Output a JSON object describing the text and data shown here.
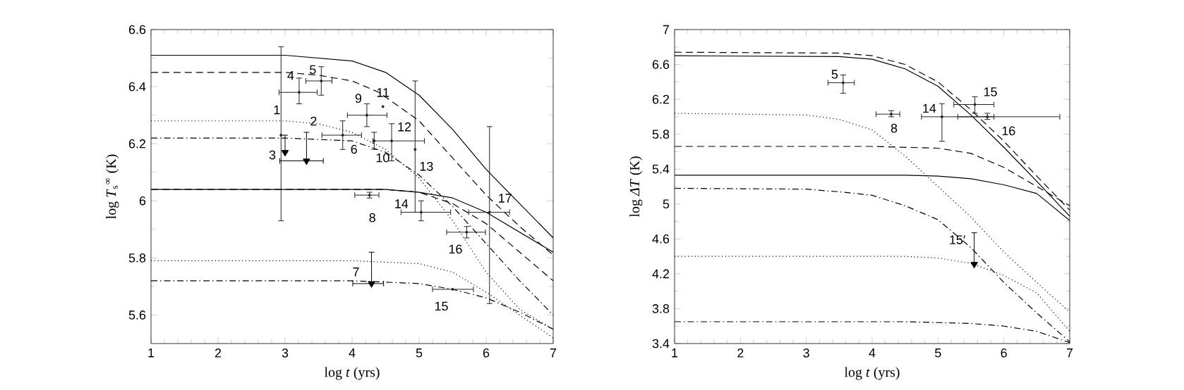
{
  "chart_data": [
    {
      "type": "line",
      "xlabel": "log *t* (yrs)",
      "ylabel": "log *T*$_{s}$$^{∞}$ (K)",
      "xlim": [
        1,
        7
      ],
      "ylim": [
        5.5,
        6.6
      ],
      "xticks": [
        1,
        2,
        3,
        4,
        5,
        6,
        7
      ],
      "yticks": [
        5.6,
        5.8,
        6,
        6.2,
        6.4,
        6.6
      ],
      "series": [
        {
          "line_style": "solid",
          "color": "#000000",
          "x": [
            1,
            3,
            4,
            4.5,
            5,
            5.5,
            6,
            6.5,
            7
          ],
          "values": [
            6.51,
            6.51,
            6.49,
            6.45,
            6.37,
            6.25,
            6.11,
            5.99,
            5.87
          ]
        },
        {
          "line_style": "dashed",
          "color": "#000000",
          "x": [
            1,
            3,
            3.5,
            4,
            4.4,
            5,
            5.5,
            6,
            6.5,
            7
          ],
          "values": [
            6.45,
            6.45,
            6.44,
            6.42,
            6.38,
            6.28,
            6.15,
            6.02,
            5.91,
            5.81
          ]
        },
        {
          "line_style": "solid",
          "color": "#000000",
          "x": [
            1,
            4,
            4.5,
            5,
            5.5,
            6,
            6.5,
            7
          ],
          "values": [
            6.04,
            6.04,
            6.04,
            6.03,
            6.01,
            5.96,
            5.89,
            5.82
          ]
        },
        {
          "line_style": "dashed",
          "color": "#000000",
          "x": [
            1,
            4,
            4.5,
            5,
            5.5,
            6,
            6.5,
            7
          ],
          "values": [
            6.04,
            6.04,
            6.04,
            6.03,
            5.99,
            5.92,
            5.82,
            5.72
          ]
        },
        {
          "line_style": "dashdot",
          "color": "#000000",
          "x": [
            1,
            3,
            4,
            4.5,
            5,
            5.5,
            6,
            6.5,
            7
          ],
          "values": [
            6.22,
            6.22,
            6.21,
            6.17,
            6.09,
            5.98,
            5.85,
            5.72,
            5.6
          ]
        },
        {
          "line_style": "dotted",
          "color": "#000000",
          "x": [
            1,
            3,
            3.5,
            4,
            4.5,
            5,
            5.5,
            6,
            6.5,
            7
          ],
          "values": [
            6.28,
            6.28,
            6.27,
            6.24,
            6.18,
            6.08,
            5.93,
            5.75,
            5.62,
            5.55
          ]
        },
        {
          "line_style": "dotted",
          "color": "#000000",
          "x": [
            1,
            4,
            5,
            5.5,
            6,
            6.5,
            7
          ],
          "values": [
            5.79,
            5.79,
            5.78,
            5.75,
            5.68,
            5.6,
            5.52
          ]
        },
        {
          "line_style": "dashdot",
          "color": "#000000",
          "x": [
            1,
            4,
            5,
            5.5,
            6,
            6.5,
            7
          ],
          "values": [
            5.72,
            5.72,
            5.71,
            5.69,
            5.66,
            5.61,
            5.55
          ]
        },
        {
          "type": "scatter",
          "marker": "circle",
          "color": "#222222",
          "x": [
            2.94,
            3.21,
            3.54,
            3.86,
            4.26,
            4.22,
            4.33,
            4.46,
            4.59,
            4.94,
            5.03,
            5.5,
            5.71,
            6.05
          ],
          "values": [
            6.23,
            6.38,
            6.42,
            6.23,
            6.02,
            6.3,
            6.21,
            6.33,
            6.21,
            6.18,
            5.96,
            5.69,
            5.89,
            5.96
          ],
          "errors": [
            [
              5.93,
              6.54
            ],
            [
              6.34,
              6.43
            ],
            [
              6.37,
              6.47
            ],
            [
              6.18,
              6.28
            ],
            [
              6.01,
              6.03
            ],
            [
              6.26,
              6.34
            ],
            [
              6.18,
              6.24
            ],
            null,
            [
              6.14,
              6.27
            ],
            [
              5.96,
              6.42
            ],
            [
              5.93,
              6.0
            ],
            null,
            [
              5.87,
              5.91
            ],
            [
              5.64,
              6.26
            ]
          ],
          "xerrors": [
            null,
            [
              2.91,
              3.48
            ],
            [
              3.31,
              3.7
            ],
            [
              3.55,
              4.14
            ],
            [
              4.04,
              4.4
            ],
            [
              3.93,
              4.52
            ],
            null,
            null,
            [
              4.31,
              5.08
            ],
            null,
            [
              4.73,
              5.47
            ],
            [
              5.2,
              5.81
            ],
            [
              5.41,
              5.99
            ],
            [
              5.74,
              6.35
            ]
          ]
        },
        {
          "type": "scatter",
          "marker": "triangle",
          "color": "#000000",
          "x": [
            3.0,
            3.32,
            4.29
          ],
          "values": [
            6.17,
            6.14,
            5.71
          ],
          "errors": [
            [
              6.17,
              6.23
            ],
            [
              6.14,
              6.24
            ],
            [
              5.71,
              5.82
            ]
          ],
          "xerrors": [
            null,
            [
              2.92,
              3.57
            ],
            [
              4.01,
              4.47
            ]
          ]
        }
      ],
      "annotations": [
        {
          "text": "1",
          "x": 2.94,
          "y": 6.23
        },
        {
          "text": "2",
          "x": 3.32,
          "y": 6.24
        },
        {
          "text": "3",
          "x": 3.0,
          "y": 6.23
        },
        {
          "text": "4",
          "x": 3.21,
          "y": 6.38
        },
        {
          "text": "5",
          "x": 3.54,
          "y": 6.42
        },
        {
          "text": "6",
          "x": 3.86,
          "y": 6.23
        },
        {
          "text": "7",
          "x": 4.29,
          "y": 5.82
        },
        {
          "text": "8",
          "x": 4.26,
          "y": 6.02
        },
        {
          "text": "9",
          "x": 4.22,
          "y": 6.3
        },
        {
          "text": "10",
          "x": 4.33,
          "y": 6.21
        },
        {
          "text": "11",
          "x": 4.46,
          "y": 6.33
        },
        {
          "text": "12",
          "x": 4.59,
          "y": 6.21
        },
        {
          "text": "13",
          "x": 4.94,
          "y": 6.18
        },
        {
          "text": "14",
          "x": 5.03,
          "y": 5.96
        },
        {
          "text": "15",
          "x": 5.5,
          "y": 5.69
        },
        {
          "text": "16",
          "x": 5.71,
          "y": 5.89
        },
        {
          "text": "17",
          "x": 6.05,
          "y": 5.96
        }
      ]
    },
    {
      "type": "line",
      "xlabel": "log *t* (yrs)",
      "ylabel": "log *ΔT* (K)",
      "xlim": [
        1,
        7
      ],
      "ylim": [
        3.4,
        7
      ],
      "xticks": [
        1,
        2,
        3,
        4,
        5,
        6,
        7
      ],
      "yticks": [
        3.4,
        3.8,
        4.2,
        4.6,
        5,
        5.4,
        5.8,
        6.2,
        6.6,
        7
      ],
      "series": [
        {
          "line_style": "dashed",
          "color": "#000000",
          "x": [
            1,
            3.5,
            4,
            4.5,
            5,
            5.5,
            6,
            6.5,
            7
          ],
          "values": [
            6.74,
            6.73,
            6.7,
            6.6,
            6.4,
            6.08,
            5.72,
            5.32,
            4.93
          ]
        },
        {
          "line_style": "solid",
          "color": "#000000",
          "x": [
            1,
            3.5,
            4,
            4.5,
            5,
            5.5,
            6,
            6.5,
            7
          ],
          "values": [
            6.7,
            6.69,
            6.66,
            6.55,
            6.35,
            6.02,
            5.65,
            5.26,
            4.86
          ]
        },
        {
          "line_style": "dashed",
          "color": "#000000",
          "x": [
            1,
            4,
            5,
            5.5,
            6,
            6.5,
            7
          ],
          "values": [
            5.66,
            5.66,
            5.64,
            5.58,
            5.42,
            5.2,
            4.98
          ]
        },
        {
          "line_style": "solid",
          "color": "#000000",
          "x": [
            1,
            4.5,
            5,
            5.5,
            6,
            6.5,
            7
          ],
          "values": [
            5.33,
            5.33,
            5.32,
            5.29,
            5.22,
            5.12,
            4.81
          ]
        },
        {
          "line_style": "dotted",
          "color": "#000000",
          "x": [
            1,
            3,
            3.5,
            4,
            4.5,
            5,
            5.5,
            6,
            6.5,
            7
          ],
          "values": [
            6.04,
            6.02,
            5.97,
            5.85,
            5.55,
            5.2,
            4.85,
            4.45,
            4.1,
            3.76
          ]
        },
        {
          "line_style": "dotted",
          "color": "#000000",
          "x": [
            1,
            4.5,
            5,
            5.5,
            6,
            6.5,
            7
          ],
          "values": [
            4.4,
            4.4,
            4.38,
            4.32,
            4.18,
            3.98,
            3.54
          ]
        },
        {
          "line_style": "dashdot",
          "color": "#000000",
          "x": [
            1,
            3,
            3.5,
            4,
            4.5,
            5,
            5.5,
            6,
            6.5,
            7
          ],
          "values": [
            5.18,
            5.17,
            5.14,
            5.1,
            4.98,
            4.82,
            4.5,
            4.1,
            3.75,
            3.42
          ]
        },
        {
          "line_style": "dashdot",
          "color": "#000000",
          "x": [
            1,
            4.5,
            5,
            5.5,
            6,
            6.5,
            7
          ],
          "values": [
            3.65,
            3.65,
            3.64,
            3.63,
            3.6,
            3.54,
            3.41
          ]
        },
        {
          "type": "scatter",
          "marker": "circle",
          "color": "#222222",
          "x": [
            3.56,
            4.29,
            5.06,
            5.56,
            5.75
          ],
          "values": [
            6.39,
            6.03,
            6.0,
            6.14,
            6.0
          ],
          "errors": [
            [
              6.27,
              6.48
            ],
            [
              6.0,
              6.07
            ],
            [
              5.72,
              6.15
            ],
            [
              6.04,
              6.23
            ],
            [
              5.97,
              6.04
            ]
          ],
          "xerrors": [
            [
              3.33,
              3.73
            ],
            [
              4.06,
              4.42
            ],
            [
              4.75,
              5.85
            ],
            [
              5.24,
              5.85
            ],
            [
              5.3,
              6.85
            ]
          ]
        },
        {
          "type": "scatter",
          "marker": "triangle",
          "color": "#000000",
          "x": [
            5.55
          ],
          "values": [
            4.31
          ],
          "errors": [
            [
              4.31,
              4.67
            ]
          ]
        }
      ],
      "annotations": [
        {
          "text": "5",
          "x": 3.56,
          "y": 6.39
        },
        {
          "text": "8",
          "x": 4.29,
          "y": 6.03
        },
        {
          "text": "14",
          "x": 5.06,
          "y": 6.0
        },
        {
          "text": "15",
          "x": 5.56,
          "y": 6.14
        },
        {
          "text": "16",
          "x": 5.75,
          "y": 6.0
        },
        {
          "text": "15′",
          "x": 5.55,
          "y": 4.67
        }
      ]
    }
  ]
}
